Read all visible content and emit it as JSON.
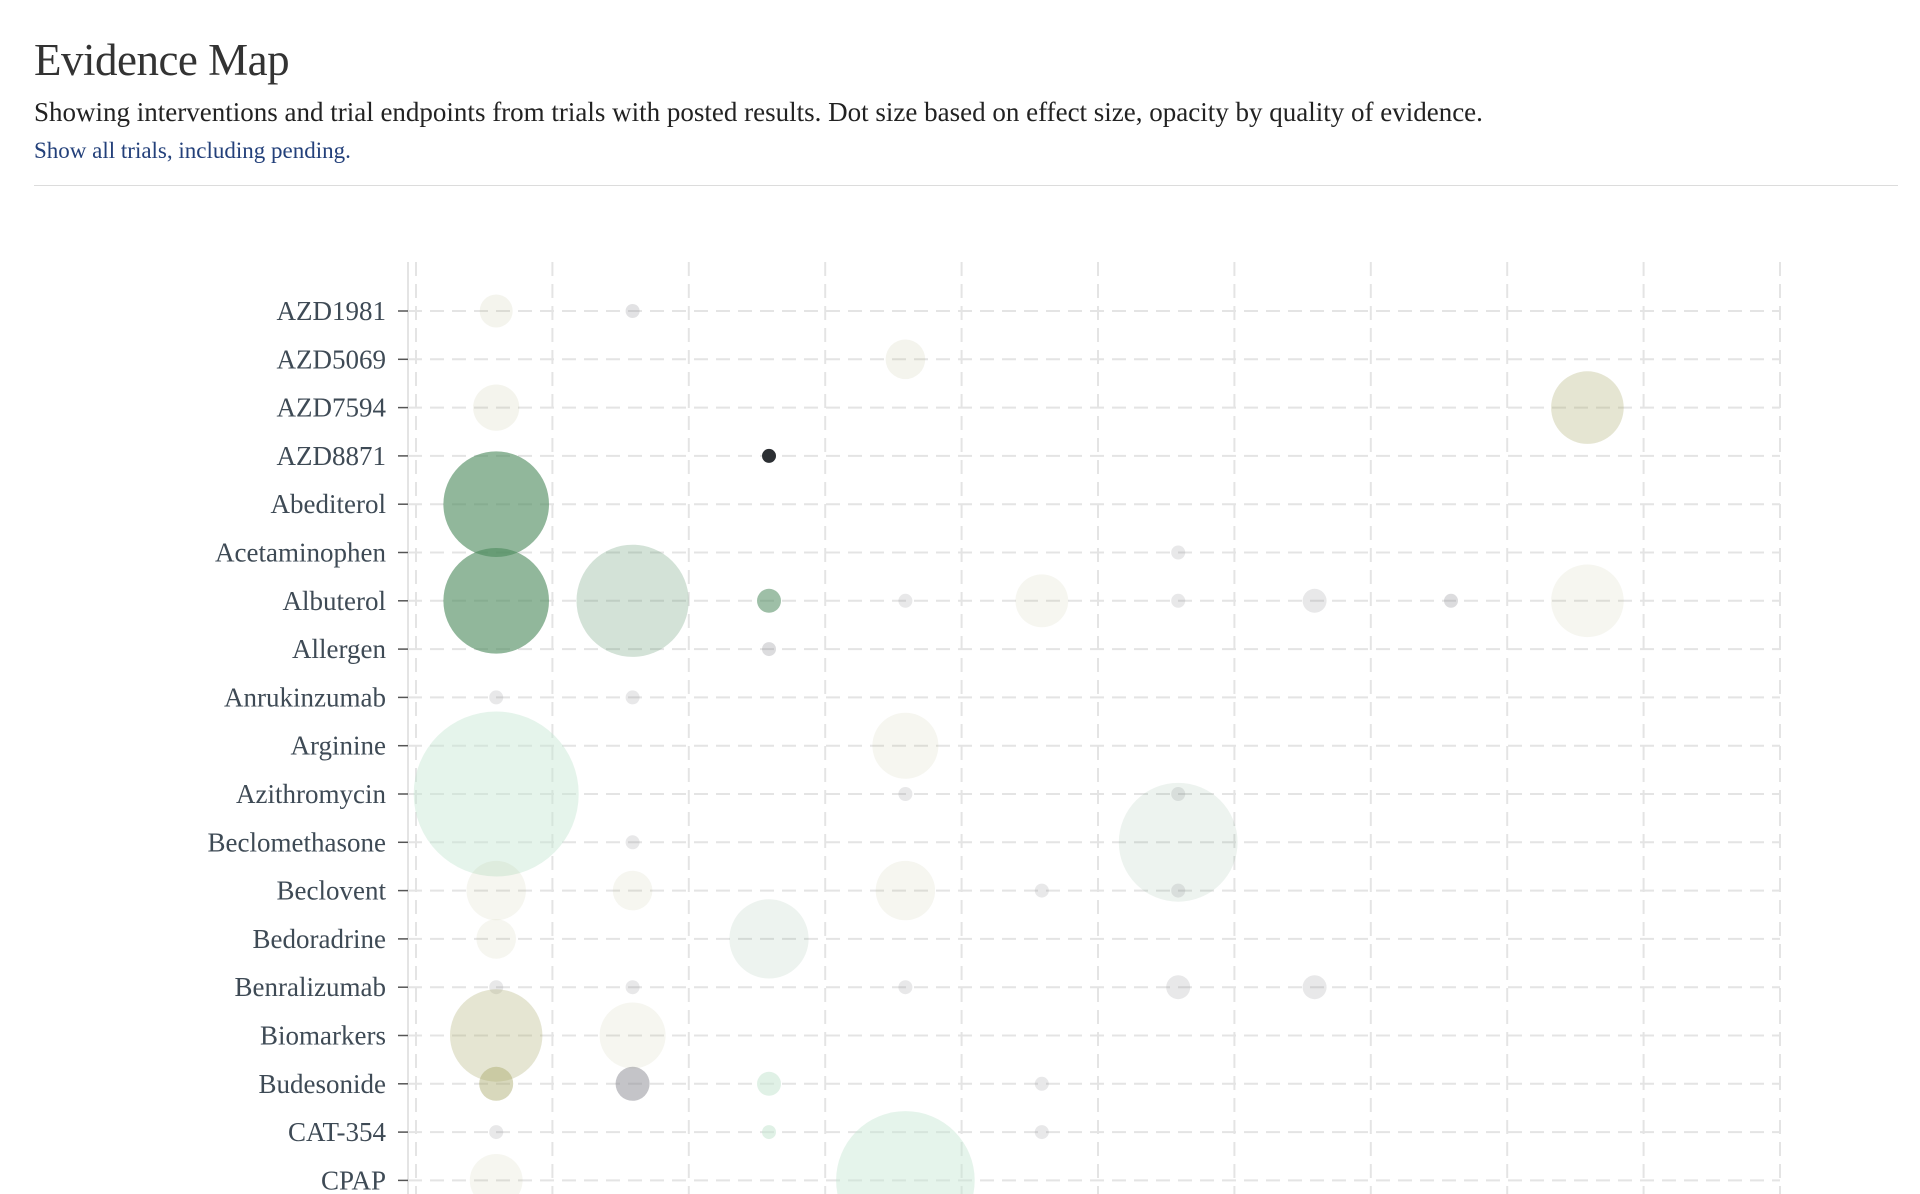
{
  "header": {
    "title": "Evidence Map",
    "subtitle": "Showing interventions and trial endpoints from trials with posted results. Dot size based on effect size, opacity by quality of evidence.",
    "show_all_link": "Show all trials, including pending."
  },
  "colors": {
    "green": "#4e8a5e",
    "light_green": "#c6e6d2",
    "olive": "#a8a86a",
    "gray": "#8a8a92",
    "dark": "#2c2f33",
    "grid": "#e4e4e4",
    "axis": "#555555"
  },
  "chart_data": {
    "type": "scatter",
    "title": "",
    "xlabel": "",
    "ylabel": "",
    "grid": true,
    "x_columns": 10,
    "categories": [
      "AZD1981",
      "AZD5069",
      "AZD7594",
      "AZD8871",
      "Abediterol",
      "Acetaminophen",
      "Albuterol",
      "Allergen",
      "Anrukinzumab",
      "Arginine",
      "Azithromycin",
      "Beclomethasone",
      "Beclovent",
      "Bedoradrine",
      "Benralizumab",
      "Biomarkers",
      "Budesonide",
      "CAT-354",
      "CPAP"
    ],
    "points": [
      {
        "category": "AZD1981",
        "x": 1,
        "size": 5,
        "color": "olive",
        "opacity": 0.12
      },
      {
        "category": "AZD1981",
        "x": 2,
        "size": 1,
        "color": "gray",
        "opacity": 0.25
      },
      {
        "category": "AZD5069",
        "x": 4,
        "size": 6,
        "color": "olive",
        "opacity": 0.12
      },
      {
        "category": "AZD7594",
        "x": 1,
        "size": 7,
        "color": "olive",
        "opacity": 0.12
      },
      {
        "category": "AZD7594",
        "x": 9,
        "size": 11,
        "color": "olive",
        "opacity": 0.3
      },
      {
        "category": "AZD8871",
        "x": 3,
        "size": 1,
        "color": "dark",
        "opacity": 1.0
      },
      {
        "category": "Abediterol",
        "x": 1,
        "size": 16,
        "color": "green",
        "opacity": 0.62
      },
      {
        "category": "Acetaminophen",
        "x": 6,
        "size": 1,
        "color": "gray",
        "opacity": 0.2
      },
      {
        "category": "Albuterol",
        "x": 1,
        "size": 16,
        "color": "green",
        "opacity": 0.62
      },
      {
        "category": "Albuterol",
        "x": 2,
        "size": 17,
        "color": "green",
        "opacity": 0.25
      },
      {
        "category": "Albuterol",
        "x": 3,
        "size": 2,
        "color": "green",
        "opacity": 0.55
      },
      {
        "category": "Albuterol",
        "x": 4,
        "size": 1,
        "color": "gray",
        "opacity": 0.2
      },
      {
        "category": "Albuterol",
        "x": 5,
        "size": 8,
        "color": "olive",
        "opacity": 0.1
      },
      {
        "category": "Albuterol",
        "x": 6,
        "size": 1,
        "color": "gray",
        "opacity": 0.2
      },
      {
        "category": "Albuterol",
        "x": 7,
        "size": 2,
        "color": "gray",
        "opacity": 0.2
      },
      {
        "category": "Albuterol",
        "x": 8,
        "size": 1,
        "color": "gray",
        "opacity": 0.3
      },
      {
        "category": "Albuterol",
        "x": 9,
        "size": 11,
        "color": "olive",
        "opacity": 0.1
      },
      {
        "category": "Allergen",
        "x": 3,
        "size": 1,
        "color": "gray",
        "opacity": 0.3
      },
      {
        "category": "Anrukinzumab",
        "x": 1,
        "size": 1,
        "color": "gray",
        "opacity": 0.2
      },
      {
        "category": "Anrukinzumab",
        "x": 2,
        "size": 1,
        "color": "gray",
        "opacity": 0.2
      },
      {
        "category": "Arginine",
        "x": 4,
        "size": 10,
        "color": "olive",
        "opacity": 0.1
      },
      {
        "category": "Azithromycin",
        "x": 1,
        "size": 25,
        "color": "light_green",
        "opacity": 0.45
      },
      {
        "category": "Azithromycin",
        "x": 4,
        "size": 1,
        "color": "gray",
        "opacity": 0.2
      },
      {
        "category": "Azithromycin",
        "x": 6,
        "size": 1,
        "color": "gray",
        "opacity": 0.2
      },
      {
        "category": "Beclomethasone",
        "x": 2,
        "size": 1,
        "color": "gray",
        "opacity": 0.2
      },
      {
        "category": "Beclomethasone",
        "x": 6,
        "size": 18,
        "color": "green",
        "opacity": 0.1
      },
      {
        "category": "Beclovent",
        "x": 1,
        "size": 9,
        "color": "olive",
        "opacity": 0.1
      },
      {
        "category": "Beclovent",
        "x": 2,
        "size": 6,
        "color": "olive",
        "opacity": 0.1
      },
      {
        "category": "Beclovent",
        "x": 4,
        "size": 9,
        "color": "olive",
        "opacity": 0.1
      },
      {
        "category": "Beclovent",
        "x": 5,
        "size": 1,
        "color": "gray",
        "opacity": 0.2
      },
      {
        "category": "Beclovent",
        "x": 6,
        "size": 1,
        "color": "gray",
        "opacity": 0.2
      },
      {
        "category": "Bedoradrine",
        "x": 1,
        "size": 6,
        "color": "olive",
        "opacity": 0.1
      },
      {
        "category": "Bedoradrine",
        "x": 3,
        "size": 12,
        "color": "green",
        "opacity": 0.1
      },
      {
        "category": "Benralizumab",
        "x": 1,
        "size": 1,
        "color": "gray",
        "opacity": 0.2
      },
      {
        "category": "Benralizumab",
        "x": 2,
        "size": 1,
        "color": "gray",
        "opacity": 0.2
      },
      {
        "category": "Benralizumab",
        "x": 4,
        "size": 1,
        "color": "gray",
        "opacity": 0.2
      },
      {
        "category": "Benralizumab",
        "x": 6,
        "size": 2,
        "color": "gray",
        "opacity": 0.2
      },
      {
        "category": "Benralizumab",
        "x": 7,
        "size": 2,
        "color": "gray",
        "opacity": 0.2
      },
      {
        "category": "Biomarkers",
        "x": 1,
        "size": 14,
        "color": "olive",
        "opacity": 0.3
      },
      {
        "category": "Biomarkers",
        "x": 2,
        "size": 10,
        "color": "olive",
        "opacity": 0.1
      },
      {
        "category": "Budesonide",
        "x": 1,
        "size": 3,
        "color": "olive",
        "opacity": 0.45
      },
      {
        "category": "Budesonide",
        "x": 2,
        "size": 3,
        "color": "gray",
        "opacity": 0.5
      },
      {
        "category": "Budesonide",
        "x": 3,
        "size": 2,
        "color": "light_green",
        "opacity": 0.55
      },
      {
        "category": "Budesonide",
        "x": 5,
        "size": 1,
        "color": "gray",
        "opacity": 0.2
      },
      {
        "category": "CAT-354",
        "x": 1,
        "size": 1,
        "color": "gray",
        "opacity": 0.2
      },
      {
        "category": "CAT-354",
        "x": 3,
        "size": 1,
        "color": "light_green",
        "opacity": 0.55
      },
      {
        "category": "CAT-354",
        "x": 5,
        "size": 1,
        "color": "gray",
        "opacity": 0.2
      },
      {
        "category": "CPAP",
        "x": 1,
        "size": 8,
        "color": "olive",
        "opacity": 0.1
      },
      {
        "category": "CPAP",
        "x": 4,
        "size": 21,
        "color": "light_green",
        "opacity": 0.45
      }
    ]
  }
}
